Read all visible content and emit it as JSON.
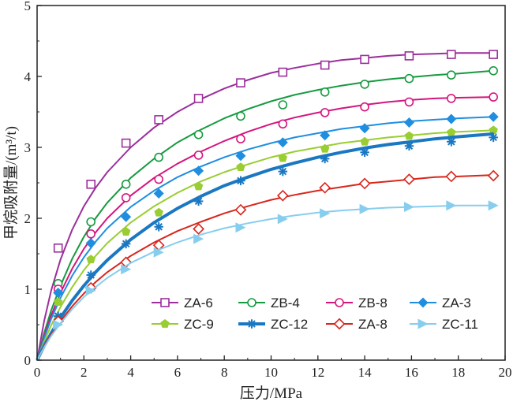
{
  "chart_data": {
    "type": "scatter",
    "xlabel": "压力/MPa",
    "ylabel": "甲烷吸附量/(m³/t)",
    "xlim": [
      0,
      20
    ],
    "ylim": [
      0,
      5
    ],
    "x_ticks": [
      0,
      2,
      4,
      6,
      8,
      10,
      12,
      14,
      16,
      18,
      20
    ],
    "y_ticks": [
      0,
      1,
      2,
      3,
      4,
      5
    ],
    "grid": false,
    "legend_position": "bottom-right",
    "series": [
      {
        "name": "ZA-6",
        "color": "#9b2f9b",
        "marker": "square-open",
        "line_width": 2,
        "points": [
          [
            0.9,
            1.58
          ],
          [
            2.3,
            2.48
          ],
          [
            3.8,
            3.06
          ],
          [
            5.2,
            3.39
          ],
          [
            6.9,
            3.69
          ],
          [
            8.7,
            3.91
          ],
          [
            10.5,
            4.06
          ],
          [
            12.3,
            4.16
          ],
          [
            14.0,
            4.24
          ],
          [
            15.9,
            4.29
          ],
          [
            17.7,
            4.31
          ],
          [
            19.5,
            4.31
          ]
        ],
        "fit": [
          [
            0,
            0
          ],
          [
            0.3,
            0.55
          ],
          [
            0.6,
            0.98
          ],
          [
            1.0,
            1.42
          ],
          [
            1.5,
            1.84
          ],
          [
            2.0,
            2.17
          ],
          [
            2.5,
            2.43
          ],
          [
            3,
            2.65
          ],
          [
            4,
            3.0
          ],
          [
            5,
            3.28
          ],
          [
            6,
            3.5
          ],
          [
            7,
            3.68
          ],
          [
            8,
            3.83
          ],
          [
            9,
            3.95
          ],
          [
            10,
            4.05
          ],
          [
            11,
            4.12
          ],
          [
            12,
            4.18
          ],
          [
            13,
            4.23
          ],
          [
            14,
            4.26
          ],
          [
            15,
            4.29
          ],
          [
            16,
            4.31
          ],
          [
            17,
            4.32
          ],
          [
            18,
            4.33
          ],
          [
            19.5,
            4.33
          ]
        ]
      },
      {
        "name": "ZB-4",
        "color": "#159a3f",
        "marker": "circle-open",
        "line_width": 2,
        "points": [
          [
            0.9,
            1.08
          ],
          [
            2.3,
            1.95
          ],
          [
            3.8,
            2.48
          ],
          [
            5.2,
            2.86
          ],
          [
            6.9,
            3.18
          ],
          [
            8.7,
            3.44
          ],
          [
            10.5,
            3.6
          ],
          [
            12.3,
            3.78
          ],
          [
            14.0,
            3.89
          ],
          [
            15.9,
            3.97
          ],
          [
            17.7,
            4.02
          ],
          [
            19.5,
            4.08
          ]
        ],
        "fit": [
          [
            0,
            0
          ],
          [
            0.3,
            0.38
          ],
          [
            0.6,
            0.7
          ],
          [
            1.0,
            1.05
          ],
          [
            1.5,
            1.43
          ],
          [
            2.0,
            1.74
          ],
          [
            2.5,
            2.0
          ],
          [
            3,
            2.22
          ],
          [
            4,
            2.57
          ],
          [
            5,
            2.84
          ],
          [
            6,
            3.07
          ],
          [
            7,
            3.25
          ],
          [
            8,
            3.41
          ],
          [
            9,
            3.54
          ],
          [
            10,
            3.65
          ],
          [
            11,
            3.74
          ],
          [
            12,
            3.81
          ],
          [
            13,
            3.87
          ],
          [
            14,
            3.92
          ],
          [
            15,
            3.96
          ],
          [
            16,
            3.99
          ],
          [
            17,
            4.02
          ],
          [
            18,
            4.04
          ],
          [
            19.5,
            4.08
          ]
        ]
      },
      {
        "name": "ZB-8",
        "color": "#d4157e",
        "marker": "circle-open",
        "line_width": 2,
        "points": [
          [
            0.9,
            1.0
          ],
          [
            2.3,
            1.78
          ],
          [
            3.8,
            2.29
          ],
          [
            5.2,
            2.55
          ],
          [
            6.9,
            2.89
          ],
          [
            8.7,
            3.12
          ],
          [
            10.5,
            3.33
          ],
          [
            12.3,
            3.49
          ],
          [
            14.0,
            3.57
          ],
          [
            15.9,
            3.64
          ],
          [
            17.7,
            3.69
          ],
          [
            19.5,
            3.71
          ]
        ],
        "fit": [
          [
            0,
            0
          ],
          [
            0.3,
            0.34
          ],
          [
            0.6,
            0.63
          ],
          [
            1.0,
            0.95
          ],
          [
            1.5,
            1.29
          ],
          [
            2.0,
            1.57
          ],
          [
            2.5,
            1.8
          ],
          [
            3,
            2.0
          ],
          [
            4,
            2.32
          ],
          [
            5,
            2.57
          ],
          [
            6,
            2.77
          ],
          [
            7,
            2.94
          ],
          [
            8,
            3.09
          ],
          [
            9,
            3.22
          ],
          [
            10,
            3.33
          ],
          [
            11,
            3.42
          ],
          [
            12,
            3.49
          ],
          [
            13,
            3.55
          ],
          [
            14,
            3.6
          ],
          [
            15,
            3.64
          ],
          [
            16,
            3.67
          ],
          [
            17,
            3.69
          ],
          [
            18,
            3.7
          ],
          [
            19.5,
            3.71
          ]
        ]
      },
      {
        "name": "ZA-3",
        "color": "#1f8ee0",
        "marker": "diamond-filled",
        "line_width": 2,
        "points": [
          [
            0.9,
            0.95
          ],
          [
            2.3,
            1.65
          ],
          [
            3.8,
            2.02
          ],
          [
            5.2,
            2.35
          ],
          [
            6.9,
            2.67
          ],
          [
            8.7,
            2.88
          ],
          [
            10.5,
            3.07
          ],
          [
            12.3,
            3.17
          ],
          [
            14.0,
            3.27
          ],
          [
            15.9,
            3.35
          ],
          [
            17.7,
            3.4
          ],
          [
            19.5,
            3.43
          ]
        ],
        "fit": [
          [
            0,
            0
          ],
          [
            0.3,
            0.31
          ],
          [
            0.6,
            0.58
          ],
          [
            1.0,
            0.88
          ],
          [
            1.5,
            1.19
          ],
          [
            2.0,
            1.45
          ],
          [
            2.5,
            1.67
          ],
          [
            3,
            1.86
          ],
          [
            4,
            2.16
          ],
          [
            5,
            2.39
          ],
          [
            6,
            2.58
          ],
          [
            7,
            2.73
          ],
          [
            8,
            2.86
          ],
          [
            9,
            2.97
          ],
          [
            10,
            3.06
          ],
          [
            11,
            3.14
          ],
          [
            12,
            3.2
          ],
          [
            13,
            3.26
          ],
          [
            14,
            3.3
          ],
          [
            15,
            3.34
          ],
          [
            16,
            3.37
          ],
          [
            17,
            3.39
          ],
          [
            18,
            3.41
          ],
          [
            19.5,
            3.43
          ]
        ]
      },
      {
        "name": "ZC-9",
        "color": "#9acd32",
        "marker": "pentagon-filled",
        "line_width": 2,
        "points": [
          [
            0.9,
            0.82
          ],
          [
            2.3,
            1.42
          ],
          [
            3.8,
            1.81
          ],
          [
            5.2,
            2.08
          ],
          [
            6.9,
            2.45
          ],
          [
            8.7,
            2.72
          ],
          [
            10.5,
            2.85
          ],
          [
            12.3,
            2.98
          ],
          [
            14.0,
            3.08
          ],
          [
            15.9,
            3.16
          ],
          [
            17.7,
            3.21
          ],
          [
            19.5,
            3.24
          ]
        ],
        "fit": [
          [
            0,
            0
          ],
          [
            0.3,
            0.26
          ],
          [
            0.6,
            0.49
          ],
          [
            1.0,
            0.75
          ],
          [
            1.5,
            1.03
          ],
          [
            2.0,
            1.27
          ],
          [
            2.5,
            1.47
          ],
          [
            3,
            1.65
          ],
          [
            4,
            1.94
          ],
          [
            5,
            2.17
          ],
          [
            6,
            2.36
          ],
          [
            7,
            2.52
          ],
          [
            8,
            2.65
          ],
          [
            9,
            2.76
          ],
          [
            10,
            2.86
          ],
          [
            11,
            2.94
          ],
          [
            12,
            3.0
          ],
          [
            13,
            3.06
          ],
          [
            14,
            3.1
          ],
          [
            15,
            3.14
          ],
          [
            16,
            3.17
          ],
          [
            17,
            3.2
          ],
          [
            18,
            3.22
          ],
          [
            19.5,
            3.24
          ]
        ]
      },
      {
        "name": "ZC-12",
        "color": "#1a78c2",
        "marker": "star-filled",
        "line_width": 4,
        "points": [
          [
            0.9,
            0.62
          ],
          [
            2.3,
            1.2
          ],
          [
            3.8,
            1.64
          ],
          [
            5.2,
            1.88
          ],
          [
            6.9,
            2.24
          ],
          [
            8.7,
            2.53
          ],
          [
            10.5,
            2.66
          ],
          [
            12.3,
            2.84
          ],
          [
            14.0,
            2.93
          ],
          [
            15.9,
            3.02
          ],
          [
            17.7,
            3.08
          ],
          [
            19.5,
            3.14
          ]
        ],
        "fit": [
          [
            0,
            0
          ],
          [
            0.3,
            0.2
          ],
          [
            0.6,
            0.38
          ],
          [
            1.0,
            0.6
          ],
          [
            1.5,
            0.84
          ],
          [
            2.0,
            1.05
          ],
          [
            2.5,
            1.24
          ],
          [
            3,
            1.41
          ],
          [
            4,
            1.7
          ],
          [
            5,
            1.94
          ],
          [
            6,
            2.14
          ],
          [
            7,
            2.31
          ],
          [
            8,
            2.46
          ],
          [
            9,
            2.58
          ],
          [
            10,
            2.69
          ],
          [
            11,
            2.78
          ],
          [
            12,
            2.86
          ],
          [
            13,
            2.93
          ],
          [
            14,
            2.99
          ],
          [
            15,
            3.04
          ],
          [
            16,
            3.08
          ],
          [
            17,
            3.12
          ],
          [
            18,
            3.15
          ],
          [
            19.5,
            3.19
          ]
        ]
      },
      {
        "name": "ZA-8",
        "color": "#d8261c",
        "marker": "diamond-open",
        "line_width": 2,
        "points": [
          [
            0.9,
            0.55
          ],
          [
            2.3,
            1.02
          ],
          [
            3.8,
            1.38
          ],
          [
            5.2,
            1.62
          ],
          [
            6.9,
            1.85
          ],
          [
            8.7,
            2.12
          ],
          [
            10.5,
            2.32
          ],
          [
            12.3,
            2.43
          ],
          [
            14.0,
            2.49
          ],
          [
            15.9,
            2.55
          ],
          [
            17.7,
            2.59
          ],
          [
            19.5,
            2.6
          ]
        ],
        "fit": [
          [
            0,
            0
          ],
          [
            0.3,
            0.19
          ],
          [
            0.6,
            0.36
          ],
          [
            1.0,
            0.55
          ],
          [
            1.5,
            0.76
          ],
          [
            2.0,
            0.94
          ],
          [
            2.5,
            1.1
          ],
          [
            3,
            1.24
          ],
          [
            4,
            1.47
          ],
          [
            5,
            1.66
          ],
          [
            6,
            1.82
          ],
          [
            7,
            1.95
          ],
          [
            8,
            2.07
          ],
          [
            9,
            2.17
          ],
          [
            10,
            2.26
          ],
          [
            11,
            2.33
          ],
          [
            12,
            2.39
          ],
          [
            13,
            2.44
          ],
          [
            14,
            2.49
          ],
          [
            15,
            2.52
          ],
          [
            16,
            2.55
          ],
          [
            17,
            2.58
          ],
          [
            18,
            2.59
          ],
          [
            19.5,
            2.61
          ]
        ]
      },
      {
        "name": "ZC-11",
        "color": "#87cdee",
        "marker": "triangle-right-filled",
        "line_width": 2,
        "points": [
          [
            0.9,
            0.5
          ],
          [
            2.3,
            0.98
          ],
          [
            3.8,
            1.28
          ],
          [
            5.2,
            1.52
          ],
          [
            6.9,
            1.71
          ],
          [
            8.7,
            1.87
          ],
          [
            10.5,
            1.99
          ],
          [
            12.3,
            2.07
          ],
          [
            14.0,
            2.13
          ],
          [
            15.9,
            2.16
          ],
          [
            17.7,
            2.18
          ],
          [
            19.5,
            2.18
          ]
        ],
        "fit": [
          [
            0,
            0
          ],
          [
            0.3,
            0.18
          ],
          [
            0.6,
            0.34
          ],
          [
            1.0,
            0.52
          ],
          [
            1.5,
            0.72
          ],
          [
            2.0,
            0.89
          ],
          [
            2.5,
            1.03
          ],
          [
            3,
            1.16
          ],
          [
            4,
            1.37
          ],
          [
            5,
            1.53
          ],
          [
            6,
            1.66
          ],
          [
            7,
            1.77
          ],
          [
            8,
            1.86
          ],
          [
            9,
            1.93
          ],
          [
            10,
            1.99
          ],
          [
            11,
            2.04
          ],
          [
            12,
            2.08
          ],
          [
            13,
            2.11
          ],
          [
            14,
            2.13
          ],
          [
            15,
            2.15
          ],
          [
            16,
            2.16
          ],
          [
            17,
            2.17
          ],
          [
            18,
            2.18
          ],
          [
            19.5,
            2.18
          ]
        ]
      }
    ]
  }
}
